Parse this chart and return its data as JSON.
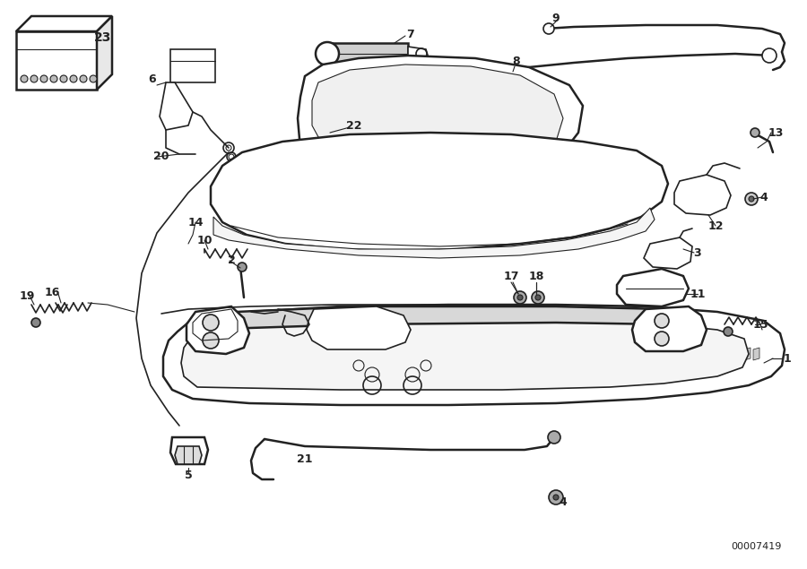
{
  "bg_color": "#ffffff",
  "line_color": "#222222",
  "fig_width": 9.0,
  "fig_height": 6.35,
  "dpi": 100,
  "diagram_id": "00007419",
  "title_color": "#222222"
}
